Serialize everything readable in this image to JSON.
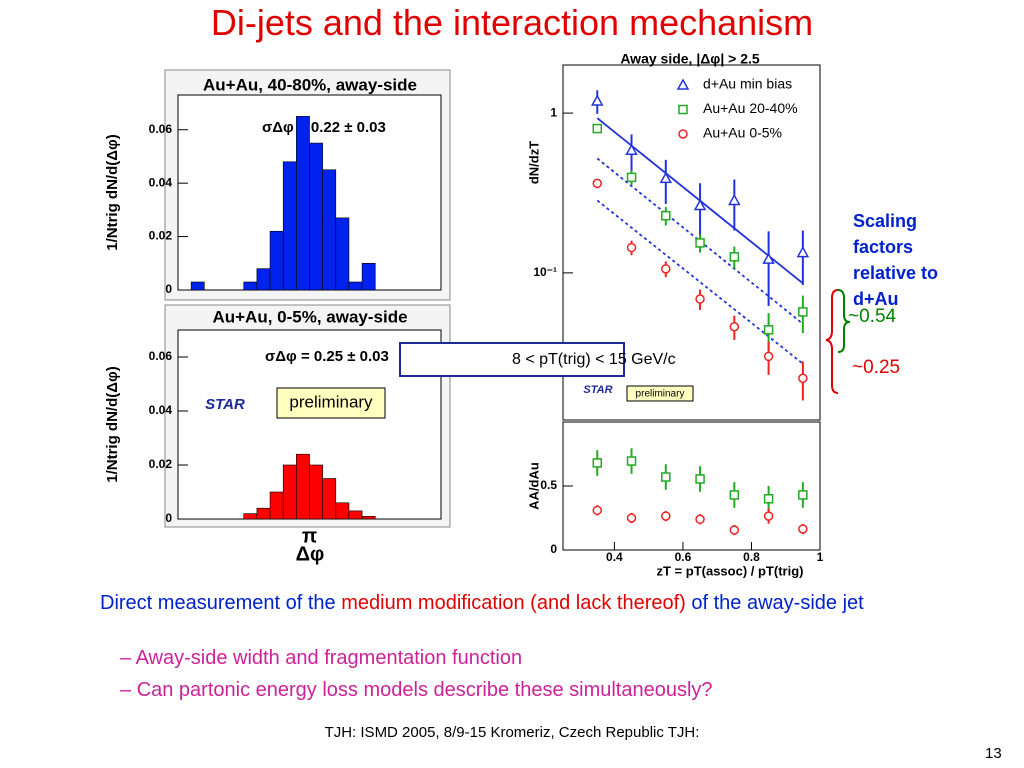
{
  "slide": {
    "title": "Di-jets and the interaction mechanism",
    "bullet": [
      "Direct measurement of the ",
      "medium modification (and lack thereof)",
      " of the away-side jet"
    ],
    "subbullets": [
      "Away-side width and fragmentation function",
      "Can partonic energy loss models describe these simultaneously?"
    ],
    "footer": "TJH: ISMD 2005, 8/9-15 Kromeriz, Czech Republic TJH:",
    "page": "13",
    "side_note": "Scaling factors relative to d+Au",
    "factors": [
      {
        "text": "~0.54",
        "color": "#008000"
      },
      {
        "text": "~0.25",
        "color": "#e00000"
      }
    ]
  },
  "chart_data": [
    {
      "type": "histogram",
      "title": "Au+Au, 40-80%, away-side",
      "ylabel": "1/Ntrig dN/d(Δφ)",
      "annotation": "σΔφ = 0.22 ± 0.03",
      "color": "#0022ee",
      "bins": [
        0,
        0.3142,
        0.6283,
        0.9425,
        1.2566,
        1.5708,
        1.885,
        2.1991,
        2.5133,
        2.8274,
        3.1416,
        3.4558,
        3.7699,
        4.0841,
        4.3982,
        4.7124,
        5.0265,
        5.3407,
        5.6549,
        5.969,
        6.2832
      ],
      "values": [
        0,
        0.003,
        0,
        0,
        0,
        0.003,
        0.008,
        0.022,
        0.048,
        0.065,
        0.055,
        0.045,
        0.027,
        0.003,
        0.01,
        0,
        0,
        0,
        0,
        0
      ],
      "xlim": [
        0,
        6.2832
      ],
      "ylim": [
        0,
        0.073
      ],
      "yticks": [
        0,
        0.02,
        0.04,
        0.06
      ]
    },
    {
      "type": "histogram",
      "title": "Au+Au, 0-5%, away-side",
      "ylabel": "1/Ntrig dN/d(Δφ)",
      "xlabel": "Δφ",
      "annotation": "σΔφ = 0.25 ± 0.03",
      "labels": [
        "STAR",
        "preliminary"
      ],
      "color": "#ff0000",
      "bins": [
        0,
        0.3142,
        0.6283,
        0.9425,
        1.2566,
        1.5708,
        1.885,
        2.1991,
        2.5133,
        2.8274,
        3.1416,
        3.4558,
        3.7699,
        4.0841,
        4.3982,
        4.7124,
        5.0265,
        5.3407,
        5.6549,
        5.969,
        6.2832
      ],
      "values": [
        0,
        0,
        0,
        0,
        0,
        0.002,
        0.004,
        0.01,
        0.02,
        0.024,
        0.02,
        0.015,
        0.006,
        0.003,
        0.001,
        0,
        0,
        0,
        0,
        0
      ],
      "xlim": [
        0,
        6.2832
      ],
      "xticks": [
        {
          "value": 3.1416,
          "label": "π"
        }
      ],
      "ylim": [
        0,
        0.07
      ],
      "yticks": [
        0,
        0.02,
        0.04,
        0.06
      ]
    },
    {
      "type": "scatter",
      "title": "Away side, |Δφ| > 2.5",
      "ylabel": "dN/dzT",
      "log_y": true,
      "labels": [
        "8 < pT(trig) < 15 GeV/c",
        "STAR",
        "preliminary"
      ],
      "x": [
        0.35,
        0.45,
        0.55,
        0.65,
        0.75,
        0.85,
        0.95
      ],
      "series": [
        {
          "name": "d+Au min bias",
          "color": "#2233dd",
          "marker": "triangle",
          "values": [
            1.19,
            0.585,
            0.39,
            0.264,
            0.284,
            0.122,
            0.134
          ],
          "errors": [
            0.2,
            0.15,
            0.12,
            0.1,
            0.1,
            0.06,
            0.05
          ]
        },
        {
          "name": "Au+Au 20-40%",
          "color": "#22aa22",
          "marker": "square",
          "values": [
            0.8,
            0.396,
            0.228,
            0.154,
            0.126,
            0.044,
            0.057
          ],
          "errors": [
            0.05,
            0.04,
            0.03,
            0.02,
            0.02,
            0.012,
            0.015
          ]
        },
        {
          "name": "Au+Au 0-5%",
          "color": "#ee2222",
          "marker": "circle",
          "values": [
            0.363,
            0.144,
            0.106,
            0.0686,
            0.046,
            0.03,
            0.0219
          ],
          "errors": [
            0.02,
            0.015,
            0.012,
            0.01,
            0.008,
            0.007,
            0.006
          ]
        }
      ],
      "fits": [
        {
          "color": "#2233dd",
          "dashed": false,
          "x": [
            0.35,
            0.95
          ],
          "values": [
            0.93,
            0.086
          ]
        },
        {
          "color": "#2233dd",
          "dashed": true,
          "x": [
            0.35,
            0.95
          ],
          "values": [
            0.52,
            0.048
          ]
        },
        {
          "color": "#2233dd",
          "dashed": true,
          "x": [
            0.35,
            0.95
          ],
          "values": [
            0.284,
            0.027
          ]
        }
      ],
      "xlim": [
        0.25,
        1
      ],
      "ylim": [
        0.012,
        2
      ],
      "yticks": [
        1,
        {
          "value": 0.1,
          "label": "10⁻¹"
        }
      ]
    },
    {
      "type": "scatter",
      "ylabel": "AA/dAu",
      "xlabel": "zT = pT(assoc) / pT(trig)",
      "x": [
        0.35,
        0.45,
        0.55,
        0.65,
        0.75,
        0.85,
        0.95
      ],
      "series": [
        {
          "color": "#22aa22",
          "marker": "square",
          "values": [
            0.68,
            0.695,
            0.57,
            0.555,
            0.43,
            0.4,
            0.43
          ],
          "errors": [
            0.1,
            0.1,
            0.1,
            0.1,
            0.1,
            0.1,
            0.1
          ]
        },
        {
          "color": "#ee2222",
          "marker": "circle",
          "values": [
            0.31,
            0.25,
            0.265,
            0.24,
            0.156,
            0.265,
            0.164
          ],
          "errors": [
            0.04,
            0.04,
            0.04,
            0.04,
            0.04,
            0.06,
            0.04
          ]
        }
      ],
      "xlim": [
        0.25,
        1
      ],
      "xticks": [
        0.4,
        0.6,
        0.8,
        1
      ],
      "ylim": [
        0,
        1
      ],
      "yticks": [
        0,
        0.5
      ]
    }
  ]
}
